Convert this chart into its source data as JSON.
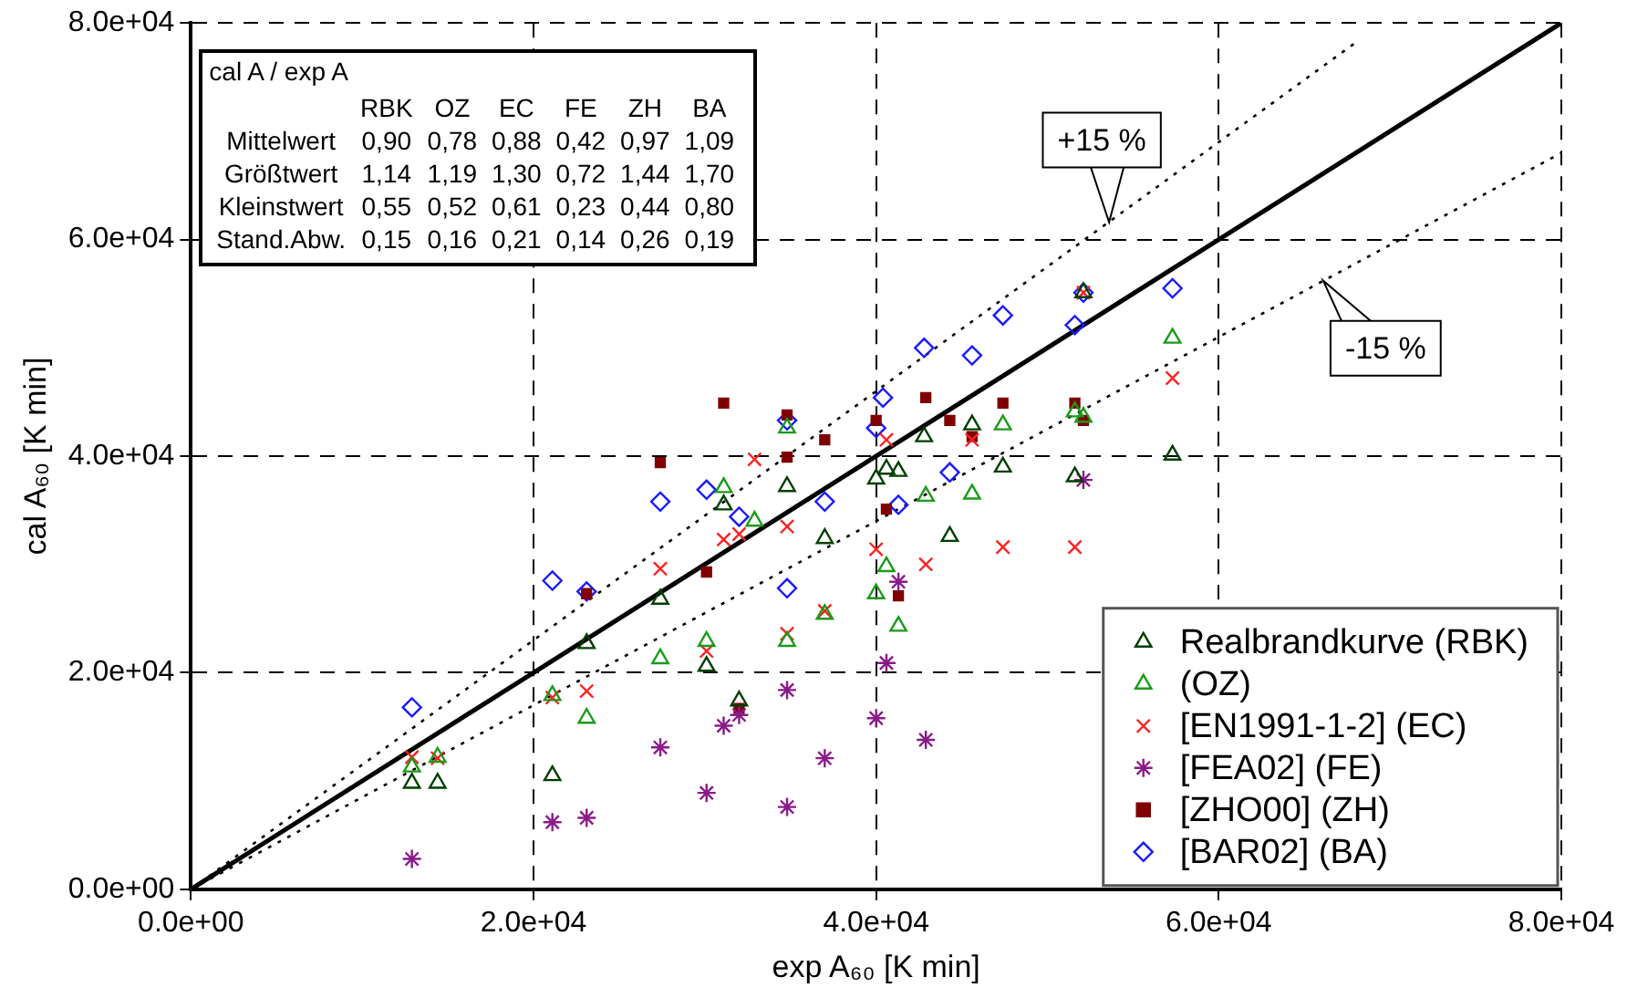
{
  "chart_data": {
    "type": "scatter",
    "xlabel": "exp A₆₀ [K min]",
    "ylabel": "cal A₆₀ [K min]",
    "xlim": [
      0,
      80000
    ],
    "ylim": [
      0,
      80000
    ],
    "xticks": [
      {
        "value": 0,
        "label": "0.0e+00"
      },
      {
        "value": 20000,
        "label": "2.0e+04"
      },
      {
        "value": 40000,
        "label": "4.0e+04"
      },
      {
        "value": 60000,
        "label": "6.0e+04"
      },
      {
        "value": 80000,
        "label": "8.0e+04"
      }
    ],
    "yticks": [
      {
        "value": 0,
        "label": "0.0e+00"
      },
      {
        "value": 20000,
        "label": "2.0e+04"
      },
      {
        "value": 40000,
        "label": "4.0e+04"
      },
      {
        "value": 60000,
        "label": "6.0e+04"
      },
      {
        "value": 80000,
        "label": "8.0e+04"
      }
    ],
    "grid": true,
    "legend": "bottom right",
    "series": [
      {
        "type": "line",
        "color": "#000000",
        "marker": "none",
        "line_style": "solid",
        "x": [
          0,
          80000
        ],
        "values": [
          0,
          80000
        ]
      },
      {
        "type": "line",
        "color": "#000000",
        "marker": "none",
        "line_style": "dotted",
        "x": [
          0,
          68000
        ],
        "values": [
          0,
          78200
        ]
      },
      {
        "type": "line",
        "color": "#000000",
        "marker": "none",
        "line_style": "dotted",
        "x": [
          0,
          80000
        ],
        "values": [
          0,
          68000
        ]
      },
      {
        "name": "Realbrandkurve (RBK)",
        "color": "#003f00",
        "marker": "triangle",
        "x": [
          12900,
          14400,
          21100,
          23100,
          27400,
          30100,
          31100,
          32000,
          34800,
          37000,
          40000,
          40600,
          41300,
          42800,
          44300,
          45600,
          47400,
          51600,
          52100,
          57300
        ],
        "values": [
          9800,
          9800,
          10500,
          22700,
          26800,
          20600,
          35500,
          17400,
          37200,
          32400,
          37900,
          38800,
          38600,
          41800,
          32600,
          42900,
          39000,
          38100,
          55100,
          40100
        ]
      },
      {
        "name": "(OZ)",
        "color": "#1a9a1a",
        "marker": "triangle",
        "x": [
          12900,
          14400,
          21100,
          23100,
          27400,
          30100,
          31100,
          32900,
          34800,
          34800,
          37000,
          40000,
          40600,
          41300,
          42900,
          45600,
          47400,
          51600,
          52100,
          57300
        ],
        "values": [
          11300,
          12200,
          17900,
          15800,
          21300,
          22900,
          37100,
          34000,
          42600,
          22900,
          25400,
          27300,
          29800,
          24300,
          36300,
          36500,
          42900,
          44100,
          43600,
          50900
        ]
      },
      {
        "name": "[EN1991-1-2] (EC)",
        "color": "#ff2020",
        "marker": "cross",
        "x": [
          12900,
          14400,
          21100,
          23100,
          27400,
          30100,
          31100,
          32000,
          32900,
          34800,
          34800,
          37000,
          40000,
          40600,
          42900,
          45600,
          47400,
          51600,
          52100,
          57300
        ],
        "values": [
          12200,
          12100,
          17700,
          18300,
          29600,
          22000,
          32300,
          32800,
          39700,
          33500,
          23600,
          25700,
          31400,
          41500,
          30000,
          41500,
          31600,
          31600,
          55100,
          47200
        ]
      },
      {
        "name": "[FEA02] (FE)",
        "color": "#8a1a8a",
        "marker": "cross",
        "x": [
          12900,
          21100,
          23100,
          27400,
          30100,
          31100,
          32000,
          34800,
          34800,
          37000,
          40000,
          40600,
          41300,
          42900,
          52100
        ],
        "values": [
          2800,
          6200,
          6600,
          13100,
          8900,
          15100,
          16100,
          18400,
          7600,
          12100,
          15800,
          20900,
          28400,
          13800,
          37800
        ]
      },
      {
        "name": "[ZHO00] (ZH)",
        "color": "#800000",
        "marker": "square",
        "x": [
          23100,
          27400,
          30100,
          31100,
          32000,
          34800,
          34800,
          37000,
          40000,
          40600,
          41300,
          42900,
          44300,
          45600,
          47400,
          51600,
          52100
        ],
        "values": [
          27300,
          39400,
          29300,
          44900,
          16700,
          43800,
          39900,
          41500,
          43300,
          35100,
          27100,
          45400,
          43300,
          41800,
          44900,
          44900,
          43300
        ]
      },
      {
        "name": "[BAR02] (BA)",
        "color": "#1a1aff",
        "marker": "diamond",
        "x": [
          12900,
          21100,
          23100,
          27400,
          30100,
          32000,
          34800,
          34800,
          37000,
          40000,
          40400,
          41300,
          42800,
          44300,
          45600,
          47400,
          51600,
          52100,
          57300
        ],
        "values": [
          16800,
          28500,
          27500,
          35800,
          36900,
          34400,
          43300,
          27800,
          35800,
          42600,
          45400,
          35500,
          50000,
          38500,
          49300,
          53000,
          52100,
          55100,
          55500
        ]
      }
    ],
    "annotations": [
      {
        "text": "+15 %",
        "x": 53600,
        "y": 61600
      },
      {
        "text": "-15 %",
        "x": 66100,
        "y": 56200
      },
      "cal A / exp A",
      "\tRBK\tOZ\tEC\tFE\tZH\tBA",
      "Mittelwert\t0,90\t0,78\t0,88\t0,42\t0,97\t1,09",
      "Größtwert\t1,14\t1,19\t1,30\t0,72\t1,44\t1,70",
      "Kleinstwert\t0,55\t0,52\t0,61\t0,23\t0,44\t0,80",
      "Stand.Abw.\t0,15\t0,16\t0,21\t0,14\t0,26\t0,19"
    ]
  }
}
